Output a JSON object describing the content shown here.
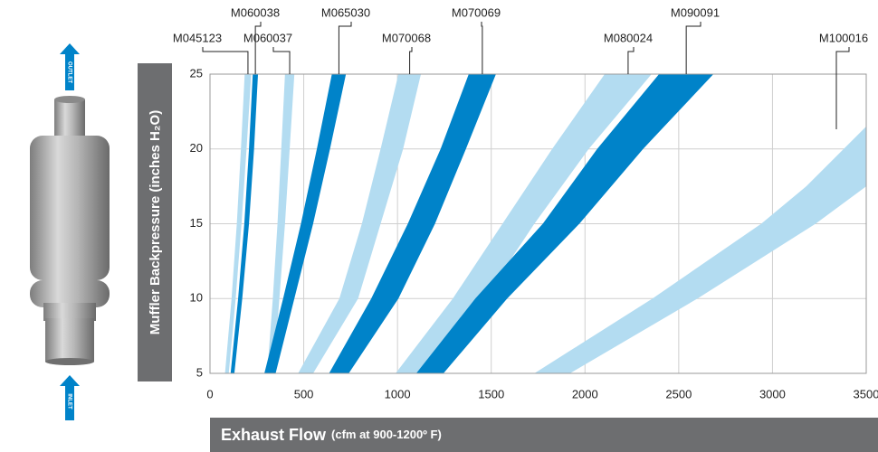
{
  "chart_data": {
    "type": "range_area",
    "ylabel": "Muffler Backpressure (inches H₂O)",
    "xlabel": "Exhaust Flow",
    "xlabel_note": "(cfm at 900-1200º F)",
    "outlet_label": "OUTLET",
    "inlet_label": "INLET",
    "xlim": [
      0,
      3500
    ],
    "ylim": [
      5,
      25
    ],
    "xticks": [
      0,
      500,
      1000,
      1500,
      2000,
      2500,
      3000,
      3500
    ],
    "yticks": [
      5,
      10,
      15,
      20,
      25
    ],
    "grid": true,
    "series": [
      {
        "name": "M045123",
        "color": "#b3dcf1",
        "y": [
          5,
          10,
          15,
          20,
          25
        ],
        "x_left": [
          80,
          115,
          143,
          165,
          185
        ],
        "x_right": [
          100,
          137,
          168,
          195,
          220
        ]
      },
      {
        "name": "M060038",
        "color": "#0083c9",
        "y": [
          5,
          10,
          15,
          20,
          25
        ],
        "x_left": [
          110,
          150,
          183,
          208,
          228
        ],
        "x_right": [
          130,
          172,
          208,
          235,
          256
        ]
      },
      {
        "name": "M060037",
        "color": "#b3dcf1",
        "y": [
          5,
          10,
          15,
          20,
          25
        ],
        "x_left": [
          305,
          335,
          360,
          380,
          400
        ],
        "x_right": [
          340,
          370,
          400,
          425,
          450
        ]
      },
      {
        "name": "M065030",
        "color": "#0083c9",
        "y": [
          5,
          10,
          15,
          20,
          25
        ],
        "x_left": [
          290,
          390,
          485,
          570,
          650
        ],
        "x_right": [
          350,
          450,
          550,
          640,
          725
        ]
      },
      {
        "name": "M070068",
        "color": "#b3dcf1",
        "y": [
          5,
          10,
          15,
          20,
          25
        ],
        "x_left": [
          470,
          690,
          810,
          910,
          1005
        ],
        "x_right": [
          550,
          790,
          910,
          1030,
          1125
        ]
      },
      {
        "name": "M070069",
        "color": "#0083c9",
        "y": [
          5,
          10,
          15,
          20,
          25
        ],
        "x_left": [
          635,
          860,
          1055,
          1230,
          1380
        ],
        "x_right": [
          740,
          1005,
          1200,
          1365,
          1525
        ]
      },
      {
        "name": "M080024",
        "color": "#b3dcf1",
        "y": [
          5,
          10,
          15,
          20,
          25
        ],
        "x_left": [
          990,
          1295,
          1560,
          1825,
          2105
        ],
        "x_right": [
          1125,
          1465,
          1730,
          2020,
          2355
        ]
      },
      {
        "name": "M090091",
        "color": "#0083c9",
        "y": [
          5,
          10,
          15,
          20,
          25
        ],
        "x_left": [
          1100,
          1415,
          1775,
          2065,
          2395
        ],
        "x_right": [
          1245,
          1585,
          1970,
          2310,
          2685
        ]
      },
      {
        "name": "M100016",
        "color": "#b3dcf1",
        "y": [
          5,
          10,
          15,
          17.5,
          21.5
        ],
        "x_left": [
          1730,
          2360,
          2940,
          3180,
          3500
        ],
        "x_right": [
          1920,
          2600,
          3230,
          3500,
          3500
        ]
      }
    ]
  }
}
